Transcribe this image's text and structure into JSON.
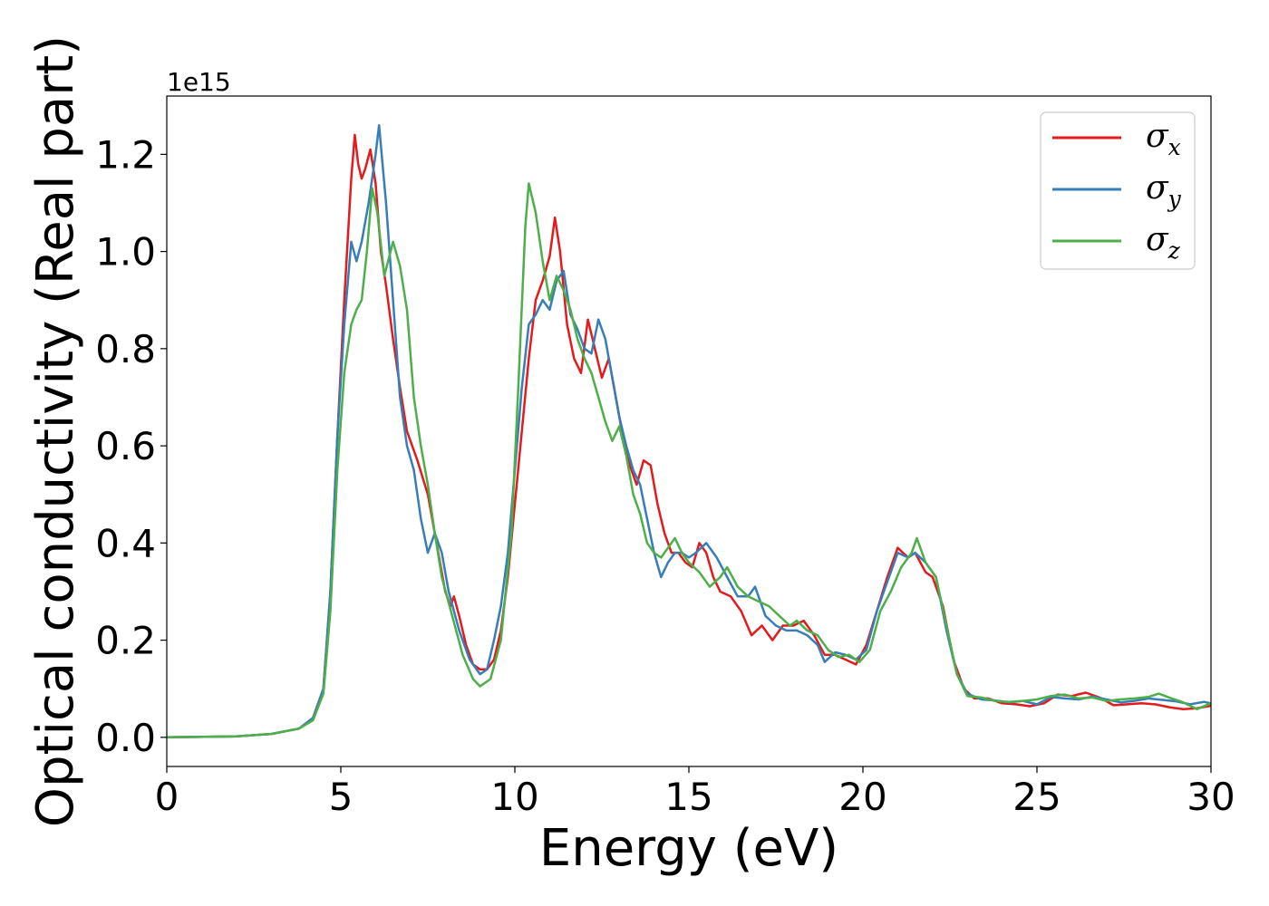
{
  "chart_data": {
    "type": "line",
    "xlabel": "Energy (eV)",
    "ylabel": "Optical conductivity (Real part)",
    "y_offset_text": "1e15",
    "xlim": [
      0,
      30
    ],
    "ylim": [
      -0.06,
      1.32
    ],
    "x_ticks": [
      "0",
      "5",
      "10",
      "15",
      "20",
      "25",
      "30"
    ],
    "y_ticks": [
      "0.0",
      "0.2",
      "0.4",
      "0.6",
      "0.8",
      "1.0",
      "1.2"
    ],
    "grid": false,
    "legend_position": "top-right",
    "series": [
      {
        "name": "σx",
        "legend_symbol": "σ",
        "legend_sub": "x",
        "color": "#e41a1c",
        "points": [
          [
            0,
            0
          ],
          [
            2,
            0.002
          ],
          [
            3,
            0.007
          ],
          [
            3.8,
            0.018
          ],
          [
            4.2,
            0.04
          ],
          [
            4.5,
            0.1
          ],
          [
            4.7,
            0.3
          ],
          [
            4.9,
            0.62
          ],
          [
            5.1,
            0.9
          ],
          [
            5.3,
            1.15
          ],
          [
            5.4,
            1.24
          ],
          [
            5.5,
            1.18
          ],
          [
            5.6,
            1.15
          ],
          [
            5.7,
            1.17
          ],
          [
            5.85,
            1.21
          ],
          [
            6.0,
            1.14
          ],
          [
            6.15,
            1.0
          ],
          [
            6.3,
            0.93
          ],
          [
            6.5,
            0.82
          ],
          [
            6.7,
            0.72
          ],
          [
            6.9,
            0.63
          ],
          [
            7.2,
            0.57
          ],
          [
            7.5,
            0.5
          ],
          [
            7.8,
            0.38
          ],
          [
            8.0,
            0.3
          ],
          [
            8.15,
            0.27
          ],
          [
            8.25,
            0.29
          ],
          [
            8.4,
            0.25
          ],
          [
            8.6,
            0.19
          ],
          [
            8.8,
            0.15
          ],
          [
            9.0,
            0.14
          ],
          [
            9.2,
            0.14
          ],
          [
            9.4,
            0.16
          ],
          [
            9.6,
            0.22
          ],
          [
            9.8,
            0.33
          ],
          [
            10.0,
            0.48
          ],
          [
            10.2,
            0.63
          ],
          [
            10.4,
            0.78
          ],
          [
            10.6,
            0.9
          ],
          [
            10.8,
            0.94
          ],
          [
            11.0,
            0.99
          ],
          [
            11.15,
            1.07
          ],
          [
            11.3,
            1.0
          ],
          [
            11.5,
            0.85
          ],
          [
            11.7,
            0.78
          ],
          [
            11.9,
            0.75
          ],
          [
            12.1,
            0.86
          ],
          [
            12.3,
            0.8
          ],
          [
            12.5,
            0.74
          ],
          [
            12.7,
            0.78
          ],
          [
            12.9,
            0.7
          ],
          [
            13.1,
            0.62
          ],
          [
            13.3,
            0.56
          ],
          [
            13.5,
            0.52
          ],
          [
            13.7,
            0.57
          ],
          [
            13.9,
            0.56
          ],
          [
            14.1,
            0.48
          ],
          [
            14.3,
            0.42
          ],
          [
            14.5,
            0.38
          ],
          [
            14.7,
            0.38
          ],
          [
            14.9,
            0.36
          ],
          [
            15.1,
            0.35
          ],
          [
            15.3,
            0.4
          ],
          [
            15.5,
            0.38
          ],
          [
            15.7,
            0.33
          ],
          [
            15.9,
            0.3
          ],
          [
            16.2,
            0.29
          ],
          [
            16.5,
            0.26
          ],
          [
            16.8,
            0.21
          ],
          [
            17.1,
            0.23
          ],
          [
            17.4,
            0.2
          ],
          [
            17.7,
            0.23
          ],
          [
            18.0,
            0.23
          ],
          [
            18.3,
            0.24
          ],
          [
            18.6,
            0.21
          ],
          [
            18.9,
            0.17
          ],
          [
            19.2,
            0.17
          ],
          [
            19.5,
            0.16
          ],
          [
            19.8,
            0.15
          ],
          [
            20.1,
            0.19
          ],
          [
            20.4,
            0.26
          ],
          [
            20.7,
            0.33
          ],
          [
            21.0,
            0.39
          ],
          [
            21.3,
            0.37
          ],
          [
            21.5,
            0.38
          ],
          [
            21.8,
            0.34
          ],
          [
            22.0,
            0.33
          ],
          [
            22.3,
            0.27
          ],
          [
            22.6,
            0.16
          ],
          [
            22.9,
            0.1
          ],
          [
            23.2,
            0.08
          ],
          [
            23.6,
            0.08
          ],
          [
            24.0,
            0.07
          ],
          [
            24.4,
            0.068
          ],
          [
            24.8,
            0.064
          ],
          [
            25.2,
            0.07
          ],
          [
            25.6,
            0.088
          ],
          [
            26.0,
            0.085
          ],
          [
            26.4,
            0.092
          ],
          [
            26.8,
            0.082
          ],
          [
            27.2,
            0.066
          ],
          [
            27.6,
            0.068
          ],
          [
            28.0,
            0.07
          ],
          [
            28.4,
            0.068
          ],
          [
            28.8,
            0.062
          ],
          [
            29.2,
            0.058
          ],
          [
            29.6,
            0.06
          ],
          [
            30,
            0.065
          ]
        ]
      },
      {
        "name": "σy",
        "legend_symbol": "σ",
        "legend_sub": "y",
        "color": "#377eb8",
        "points": [
          [
            0,
            0
          ],
          [
            2,
            0.002
          ],
          [
            3,
            0.007
          ],
          [
            3.8,
            0.018
          ],
          [
            4.2,
            0.04
          ],
          [
            4.5,
            0.1
          ],
          [
            4.7,
            0.3
          ],
          [
            4.9,
            0.62
          ],
          [
            5.1,
            0.85
          ],
          [
            5.3,
            1.02
          ],
          [
            5.45,
            0.98
          ],
          [
            5.6,
            1.02
          ],
          [
            5.8,
            1.1
          ],
          [
            6.0,
            1.2
          ],
          [
            6.1,
            1.26
          ],
          [
            6.3,
            1.1
          ],
          [
            6.5,
            0.9
          ],
          [
            6.7,
            0.7
          ],
          [
            6.9,
            0.6
          ],
          [
            7.1,
            0.55
          ],
          [
            7.3,
            0.45
          ],
          [
            7.5,
            0.38
          ],
          [
            7.7,
            0.42
          ],
          [
            7.9,
            0.38
          ],
          [
            8.1,
            0.3
          ],
          [
            8.4,
            0.22
          ],
          [
            8.7,
            0.16
          ],
          [
            9.0,
            0.13
          ],
          [
            9.2,
            0.14
          ],
          [
            9.4,
            0.2
          ],
          [
            9.6,
            0.27
          ],
          [
            9.8,
            0.38
          ],
          [
            10.0,
            0.55
          ],
          [
            10.2,
            0.72
          ],
          [
            10.4,
            0.85
          ],
          [
            10.6,
            0.87
          ],
          [
            10.8,
            0.9
          ],
          [
            11.0,
            0.88
          ],
          [
            11.2,
            0.94
          ],
          [
            11.4,
            0.96
          ],
          [
            11.6,
            0.87
          ],
          [
            11.8,
            0.84
          ],
          [
            12.0,
            0.8
          ],
          [
            12.2,
            0.79
          ],
          [
            12.4,
            0.86
          ],
          [
            12.6,
            0.82
          ],
          [
            12.8,
            0.74
          ],
          [
            13.0,
            0.66
          ],
          [
            13.2,
            0.6
          ],
          [
            13.4,
            0.55
          ],
          [
            13.6,
            0.52
          ],
          [
            13.8,
            0.45
          ],
          [
            14.0,
            0.38
          ],
          [
            14.2,
            0.33
          ],
          [
            14.4,
            0.36
          ],
          [
            14.6,
            0.38
          ],
          [
            14.8,
            0.38
          ],
          [
            15.0,
            0.37
          ],
          [
            15.2,
            0.38
          ],
          [
            15.5,
            0.4
          ],
          [
            15.8,
            0.37
          ],
          [
            16.1,
            0.33
          ],
          [
            16.4,
            0.29
          ],
          [
            16.7,
            0.29
          ],
          [
            16.9,
            0.31
          ],
          [
            17.2,
            0.25
          ],
          [
            17.5,
            0.23
          ],
          [
            17.8,
            0.22
          ],
          [
            18.1,
            0.22
          ],
          [
            18.4,
            0.21
          ],
          [
            18.7,
            0.19
          ],
          [
            18.9,
            0.155
          ],
          [
            19.2,
            0.175
          ],
          [
            19.5,
            0.17
          ],
          [
            19.8,
            0.16
          ],
          [
            20.1,
            0.18
          ],
          [
            20.4,
            0.26
          ],
          [
            20.7,
            0.32
          ],
          [
            21.0,
            0.38
          ],
          [
            21.3,
            0.37
          ],
          [
            21.5,
            0.38
          ],
          [
            21.8,
            0.36
          ],
          [
            22.1,
            0.33
          ],
          [
            22.4,
            0.22
          ],
          [
            22.7,
            0.13
          ],
          [
            23.0,
            0.09
          ],
          [
            23.4,
            0.078
          ],
          [
            23.8,
            0.076
          ],
          [
            24.2,
            0.072
          ],
          [
            24.6,
            0.075
          ],
          [
            25.0,
            0.068
          ],
          [
            25.4,
            0.083
          ],
          [
            25.8,
            0.08
          ],
          [
            26.2,
            0.078
          ],
          [
            26.6,
            0.084
          ],
          [
            27.0,
            0.078
          ],
          [
            27.4,
            0.072
          ],
          [
            27.8,
            0.075
          ],
          [
            28.2,
            0.08
          ],
          [
            28.6,
            0.077
          ],
          [
            29.0,
            0.074
          ],
          [
            29.4,
            0.068
          ],
          [
            29.8,
            0.073
          ],
          [
            30,
            0.07
          ]
        ]
      },
      {
        "name": "σz",
        "legend_symbol": "σ",
        "legend_sub": "z",
        "color": "#4daf4a",
        "points": [
          [
            0,
            0
          ],
          [
            2,
            0.002
          ],
          [
            3,
            0.007
          ],
          [
            3.8,
            0.018
          ],
          [
            4.2,
            0.035
          ],
          [
            4.5,
            0.09
          ],
          [
            4.7,
            0.26
          ],
          [
            4.9,
            0.55
          ],
          [
            5.1,
            0.75
          ],
          [
            5.3,
            0.85
          ],
          [
            5.45,
            0.88
          ],
          [
            5.6,
            0.9
          ],
          [
            5.75,
            1.0
          ],
          [
            5.9,
            1.13
          ],
          [
            6.05,
            1.08
          ],
          [
            6.25,
            0.95
          ],
          [
            6.5,
            1.02
          ],
          [
            6.7,
            0.97
          ],
          [
            6.9,
            0.88
          ],
          [
            7.1,
            0.7
          ],
          [
            7.3,
            0.6
          ],
          [
            7.5,
            0.52
          ],
          [
            7.7,
            0.42
          ],
          [
            7.9,
            0.33
          ],
          [
            8.2,
            0.25
          ],
          [
            8.5,
            0.17
          ],
          [
            8.8,
            0.12
          ],
          [
            9.0,
            0.105
          ],
          [
            9.3,
            0.12
          ],
          [
            9.6,
            0.2
          ],
          [
            9.9,
            0.42
          ],
          [
            10.1,
            0.72
          ],
          [
            10.3,
            1.05
          ],
          [
            10.4,
            1.14
          ],
          [
            10.6,
            1.08
          ],
          [
            10.8,
            0.98
          ],
          [
            11.0,
            0.9
          ],
          [
            11.2,
            0.95
          ],
          [
            11.4,
            0.92
          ],
          [
            11.6,
            0.88
          ],
          [
            11.8,
            0.82
          ],
          [
            12.0,
            0.78
          ],
          [
            12.2,
            0.75
          ],
          [
            12.4,
            0.7
          ],
          [
            12.6,
            0.65
          ],
          [
            12.8,
            0.61
          ],
          [
            13.0,
            0.64
          ],
          [
            13.2,
            0.58
          ],
          [
            13.4,
            0.5
          ],
          [
            13.6,
            0.46
          ],
          [
            13.8,
            0.4
          ],
          [
            14.0,
            0.38
          ],
          [
            14.2,
            0.37
          ],
          [
            14.4,
            0.39
          ],
          [
            14.6,
            0.41
          ],
          [
            14.8,
            0.38
          ],
          [
            15.0,
            0.36
          ],
          [
            15.3,
            0.34
          ],
          [
            15.6,
            0.31
          ],
          [
            15.9,
            0.33
          ],
          [
            16.1,
            0.35
          ],
          [
            16.4,
            0.31
          ],
          [
            16.7,
            0.29
          ],
          [
            17.0,
            0.28
          ],
          [
            17.3,
            0.27
          ],
          [
            17.6,
            0.25
          ],
          [
            17.9,
            0.23
          ],
          [
            18.1,
            0.24
          ],
          [
            18.4,
            0.22
          ],
          [
            18.7,
            0.21
          ],
          [
            19.0,
            0.18
          ],
          [
            19.3,
            0.165
          ],
          [
            19.6,
            0.17
          ],
          [
            19.9,
            0.155
          ],
          [
            20.2,
            0.18
          ],
          [
            20.5,
            0.26
          ],
          [
            20.8,
            0.3
          ],
          [
            21.1,
            0.35
          ],
          [
            21.4,
            0.38
          ],
          [
            21.55,
            0.41
          ],
          [
            21.8,
            0.36
          ],
          [
            22.1,
            0.33
          ],
          [
            22.4,
            0.23
          ],
          [
            22.7,
            0.13
          ],
          [
            23.0,
            0.085
          ],
          [
            23.4,
            0.082
          ],
          [
            23.8,
            0.075
          ],
          [
            24.2,
            0.073
          ],
          [
            24.6,
            0.075
          ],
          [
            25.0,
            0.078
          ],
          [
            25.4,
            0.085
          ],
          [
            25.8,
            0.088
          ],
          [
            26.2,
            0.08
          ],
          [
            26.6,
            0.082
          ],
          [
            27.0,
            0.075
          ],
          [
            27.4,
            0.078
          ],
          [
            27.8,
            0.08
          ],
          [
            28.2,
            0.083
          ],
          [
            28.5,
            0.09
          ],
          [
            28.8,
            0.082
          ],
          [
            29.2,
            0.072
          ],
          [
            29.6,
            0.058
          ],
          [
            30,
            0.07
          ]
        ]
      }
    ]
  }
}
